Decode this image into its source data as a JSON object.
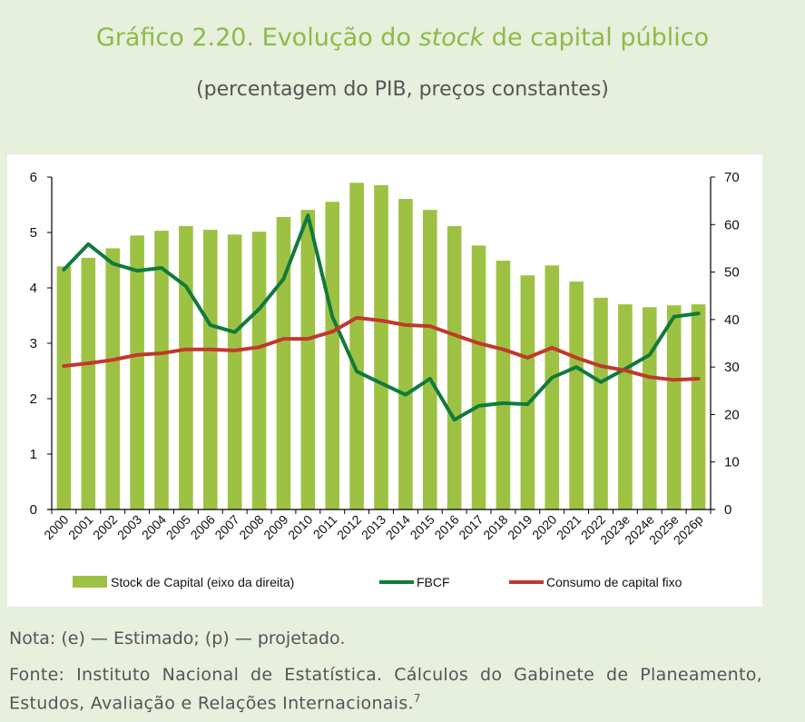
{
  "title_prefix": "Gráfico 2.20. Evolução do ",
  "title_italic": "stock",
  "title_suffix": " de capital público",
  "subtitle": "(percentagem do PIB, preços constantes)",
  "nota": "Nota: (e) — Estimado; (p) — projetado.",
  "fonte": "Fonte: Instituto Nacional de Estatística. Cálculos do Gabinete de Planeamento, Estudos, Avaliação e Relações Internacionais.",
  "fonte_ref": "7",
  "chart_data": {
    "type": "bar",
    "categories": [
      "2000",
      "2001",
      "2002",
      "2003",
      "2004",
      "2005",
      "2006",
      "2007",
      "2008",
      "2009",
      "2010",
      "2011",
      "2012",
      "2013",
      "2014",
      "2015",
      "2016",
      "2017",
      "2018",
      "2019",
      "2020",
      "2021",
      "2022",
      "2023e",
      "2024e",
      "2025e",
      "2026p"
    ],
    "left_axis": {
      "ylim": [
        0,
        6
      ],
      "ticks": [
        "0",
        "1",
        "2",
        "3",
        "4",
        "5",
        "6"
      ]
    },
    "right_axis": {
      "ylim": [
        0,
        70
      ],
      "ticks": [
        "0",
        "10",
        "20",
        "30",
        "40",
        "50",
        "60",
        "70"
      ]
    },
    "series": [
      {
        "name": "Stock de Capital (eixo da direita)",
        "type": "bar",
        "axis": "right",
        "color": "#9dc243",
        "values": [
          51.2,
          53,
          55,
          57.7,
          58.7,
          59.7,
          58.9,
          57.9,
          58.5,
          61.6,
          63.1,
          64.8,
          68.8,
          68.3,
          65.4,
          63.1,
          59.7,
          55.6,
          52.4,
          49.3,
          51.4,
          48,
          44.6,
          43.2,
          42.6,
          43,
          43.2
        ]
      },
      {
        "name": "FBCF",
        "type": "line",
        "axis": "left",
        "color": "#117a3c",
        "values": [
          4.33,
          4.79,
          4.44,
          4.31,
          4.36,
          4.03,
          3.33,
          3.2,
          3.62,
          4.16,
          5.31,
          3.48,
          2.49,
          2.28,
          2.07,
          2.36,
          1.62,
          1.87,
          1.92,
          1.9,
          2.38,
          2.57,
          2.3,
          2.54,
          2.79,
          3.48,
          3.54
        ]
      },
      {
        "name": "Consumo de capital fixo",
        "type": "line",
        "axis": "left",
        "color": "#c0392b",
        "values": [
          2.59,
          2.64,
          2.7,
          2.79,
          2.82,
          2.89,
          2.89,
          2.87,
          2.93,
          3.08,
          3.08,
          3.21,
          3.46,
          3.41,
          3.33,
          3.31,
          3.15,
          3.0,
          2.89,
          2.74,
          2.92,
          2.74,
          2.59,
          2.51,
          2.39,
          2.34,
          2.36
        ]
      }
    ],
    "legend": "bottom"
  }
}
